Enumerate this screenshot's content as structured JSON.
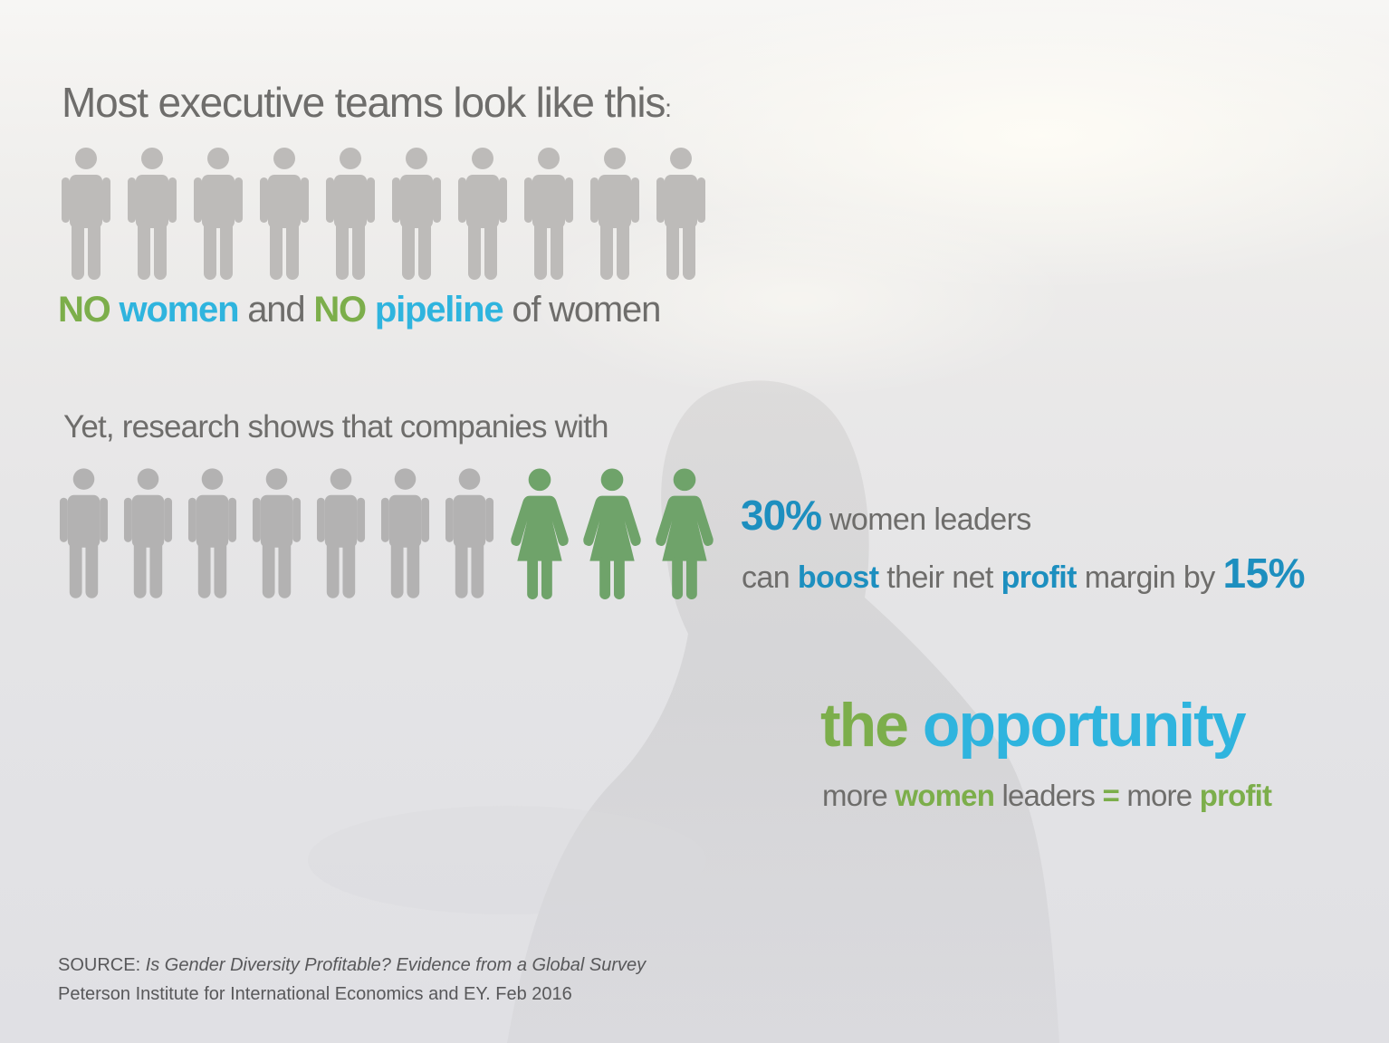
{
  "title": {
    "text": "Most executive teams look like this",
    "colon": ":"
  },
  "row1": {
    "men": 10,
    "women": 0,
    "man_color": "#bdbbb9",
    "woman_color": "#6fa36a"
  },
  "tagline1": {
    "no_1": "NO",
    "women": "women",
    "and": "and",
    "no_2": "NO",
    "pipeline": "pipeline",
    "of_women": "of women"
  },
  "research": "Yet, research shows that companies with",
  "row2": {
    "men": 7,
    "women": 3,
    "man_color": "#b3b2b2",
    "woman_color": "#6fa36a"
  },
  "stat1": {
    "value": "30%",
    "text": "women leaders"
  },
  "stat2": {
    "can": "can",
    "boost": "boost",
    "their_net": "their net",
    "profit": "profit",
    "margin_by": "margin by",
    "value": "15%"
  },
  "opportunity": {
    "the": "the",
    "word": "opportunity"
  },
  "equation": {
    "more_1": "more",
    "women": "women",
    "leaders": "leaders",
    "equals": "=",
    "more_2": "more",
    "profit": "profit"
  },
  "source": {
    "label": "SOURCE:",
    "title": "Is Gender Diversity Profitable? Evidence from a Global Survey",
    "line2": "Peterson Institute for International Economics and EY.  Feb 2016"
  },
  "colors": {
    "green": "#7cae4b",
    "blue": "#2fb4de",
    "dark_blue": "#1d8fbf",
    "text_gray": "#6e6d6b"
  }
}
